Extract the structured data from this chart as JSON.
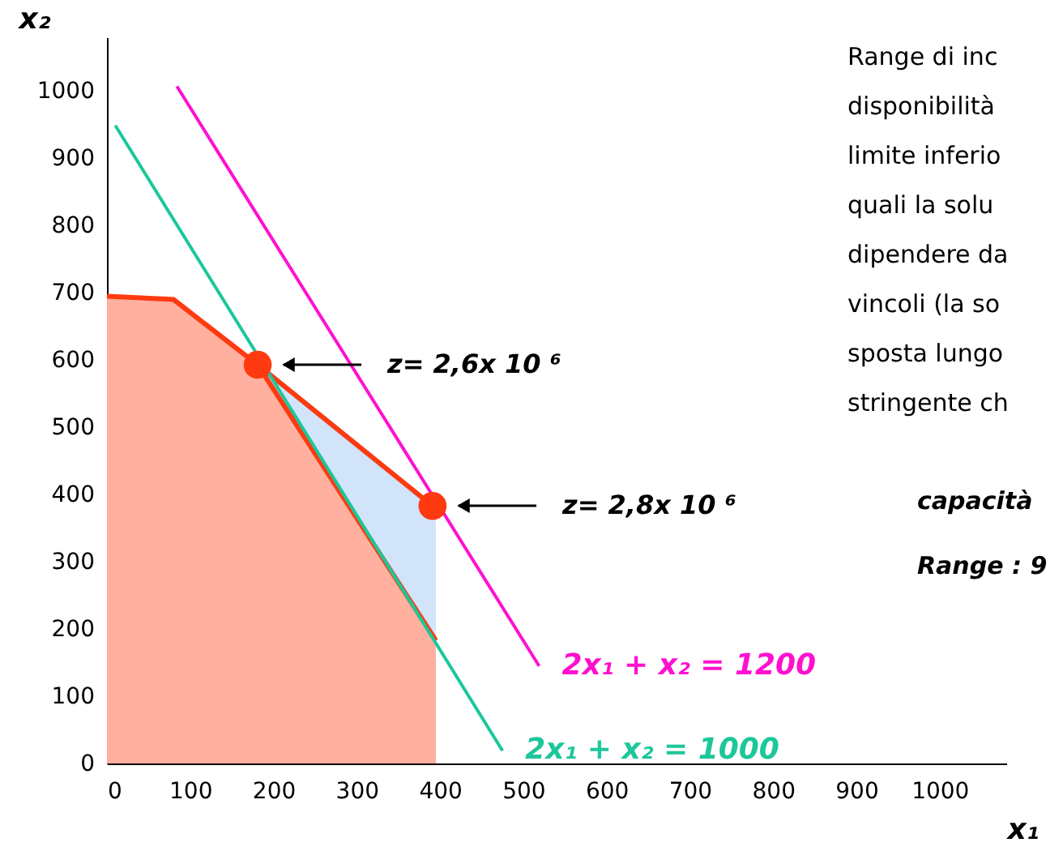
{
  "chart_data": {
    "type": "line",
    "xlabel": "x₁",
    "ylabel": "x₂",
    "xlim": [
      0,
      1080
    ],
    "ylim": [
      0,
      1080
    ],
    "xticks": [
      0,
      100,
      200,
      300,
      400,
      500,
      600,
      700,
      800,
      900,
      1000
    ],
    "yticks": [
      0,
      100,
      200,
      300,
      400,
      500,
      600,
      700,
      800,
      900,
      1000
    ],
    "grid": false,
    "series": [
      {
        "type": "area",
        "color": "#8fbcf0",
        "x": [
          181,
          391,
          395
        ],
        "values": [
          593,
          383,
          383
        ]
      },
      {
        "type": "area",
        "color": "#ff3a10",
        "x": [
          0,
          80,
          181,
          395
        ],
        "values": [
          695,
          690,
          593,
          183
        ]
      },
      {
        "color": "#ff3a10",
        "x": [
          181,
          391
        ],
        "values": [
          593,
          383
        ]
      },
      {
        "name": "2x₁ + x₂ = 1000",
        "color": "#1cc79a",
        "x": [
          10,
          475
        ],
        "values": [
          949,
          19
        ]
      },
      {
        "name": "2x₁ + x₂ = 1200",
        "color": "#ff10d0",
        "x": [
          84,
          519
        ],
        "values": [
          1007,
          145
        ]
      },
      {
        "type": "scatter",
        "color": "#ff3a10",
        "x": [
          181,
          391
        ],
        "values": [
          593,
          383
        ]
      }
    ],
    "annotations": [
      "z= 2,6x 10 ⁶",
      "z= 2,8x 10 ⁶",
      "Range di inc\ndisponibilità\nlimite inferio\nquali la solu\ndipendere da\nvincoli (la so\nsposta lungo\nstringente ch",
      "capacità",
      "Range : 9"
    ]
  }
}
